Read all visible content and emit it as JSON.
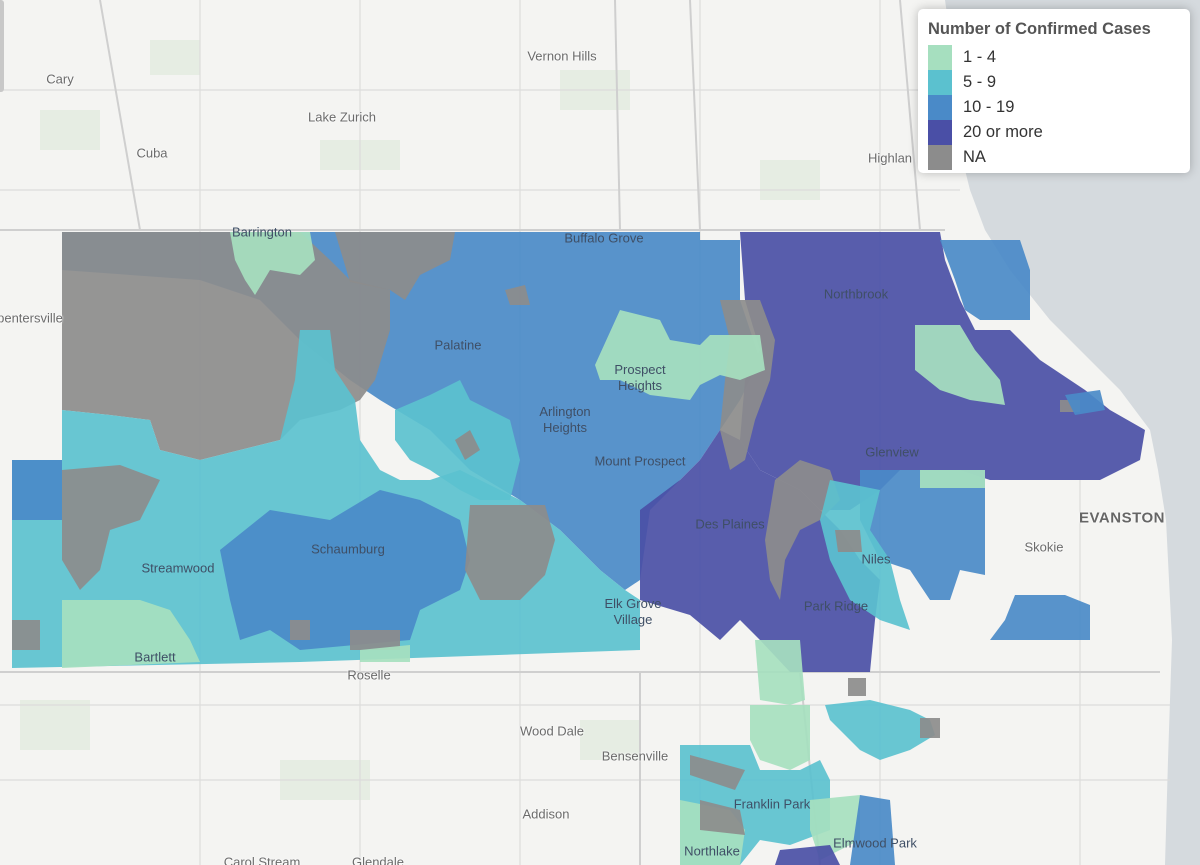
{
  "legend": {
    "title": "Number of Confirmed Cases",
    "items": [
      {
        "label": "1 - 4",
        "color": "#a6dfbf"
      },
      {
        "label": "5 - 9",
        "color": "#5bc1cf"
      },
      {
        "label": "10 - 19",
        "color": "#4a8ac8"
      },
      {
        "label": "20 or more",
        "color": "#4a4fa6"
      },
      {
        "label": "NA",
        "color": "#8c8c8c"
      }
    ]
  },
  "places": [
    {
      "id": "vernon-hills",
      "label": "Vernon Hills"
    },
    {
      "id": "cary",
      "label": "Cary"
    },
    {
      "id": "lake-zurich",
      "label": "Lake Zurich"
    },
    {
      "id": "cuba",
      "label": "Cuba"
    },
    {
      "id": "highland",
      "label": "Highlan"
    },
    {
      "id": "barrington",
      "label": "Barrington"
    },
    {
      "id": "buffalo-grove",
      "label": "Buffalo Grove"
    },
    {
      "id": "northbrook",
      "label": "Northbrook"
    },
    {
      "id": "carpentersville",
      "label": "pentersville"
    },
    {
      "id": "palatine",
      "label": "Palatine"
    },
    {
      "id": "prospect-heights",
      "label": "Prospect Heights"
    },
    {
      "id": "arlington-heights",
      "label": "Arlington Heights"
    },
    {
      "id": "glenview",
      "label": "Glenview"
    },
    {
      "id": "mount-prospect",
      "label": "Mount Prospect"
    },
    {
      "id": "evanston",
      "label": "EVANSTON"
    },
    {
      "id": "des-plaines",
      "label": "Des Plaines"
    },
    {
      "id": "schaumburg",
      "label": "Schaumburg"
    },
    {
      "id": "skokie",
      "label": "Skokie"
    },
    {
      "id": "niles",
      "label": "Niles"
    },
    {
      "id": "streamwood",
      "label": "Streamwood"
    },
    {
      "id": "elk-grove-village",
      "label": "Elk Grove Village"
    },
    {
      "id": "park-ridge",
      "label": "Park Ridge"
    },
    {
      "id": "bartlett",
      "label": "Bartlett"
    },
    {
      "id": "roselle",
      "label": "Roselle"
    },
    {
      "id": "wood-dale",
      "label": "Wood Dale"
    },
    {
      "id": "bensenville",
      "label": "Bensenville"
    },
    {
      "id": "franklin-park",
      "label": "Franklin Park"
    },
    {
      "id": "addison",
      "label": "Addison"
    },
    {
      "id": "elmwood-park",
      "label": "Elmwood Park"
    },
    {
      "id": "northlake",
      "label": "Northlake"
    },
    {
      "id": "carol-stream",
      "label": "Carol Stream"
    },
    {
      "id": "glendale",
      "label": "Glendale"
    }
  ]
}
